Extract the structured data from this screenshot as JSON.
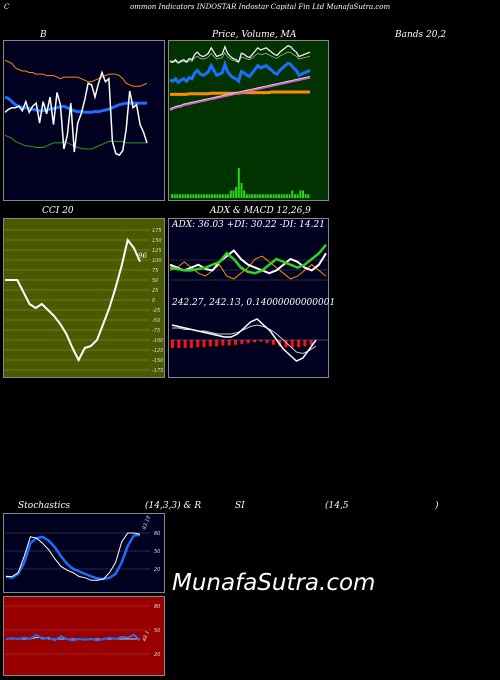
{
  "header": {
    "c": "C",
    "title": "ommon Indicators INDOSTAR Indostar Capital Fin Ltd MunafaSutra.com"
  },
  "labels": {
    "b": "B",
    "price": "Price, Volume, MA",
    "bands": "Bands 20,2",
    "cci": "CCI 20",
    "adx_macd": "ADX & MACD 12,26,9",
    "adx_values": "ADX: 36.03 +DI: 30.22 -DI: 14.21",
    "macd_values": "242.27, 242.13, 0.14000000000001",
    "stoch": "Stochastics",
    "stoch_params": "(14,3,3) & R",
    "rsi": "SI",
    "rsi_params": "(14,5",
    "rsi_close": ")",
    "cci_value": "96",
    "stoch_value": "83.18",
    "rsi_value": "48.1",
    "watermark": "MunafaSutra.com"
  },
  "colors": {
    "panel_navy": "#000020",
    "panel_green": "#003300",
    "cci_olive": "#4a5a00",
    "rsi_red": "#990000",
    "blue": "#1a6fff",
    "orange": "#ff8c00",
    "green_line": "#2fd41f",
    "magenta": "#d05ad0"
  },
  "chart_data": [
    {
      "type": "line",
      "name": "bollinger",
      "series": [
        {
          "values": [
            112,
            116,
            118,
            118,
            120,
            114,
            126,
            112,
            120,
            124,
            98,
            126,
            110,
            132,
            96,
            138,
            122,
            64,
            82,
            124,
            60,
            98,
            110,
            128,
            150,
            148,
            132,
            150,
            164,
            152,
            156,
            74,
            58,
            56,
            62,
            90,
            140,
            118,
            122,
            96,
            86,
            72
          ]
        },
        {
          "values": [
            132,
            130,
            126,
            122,
            120,
            118,
            118,
            117,
            116,
            115,
            114,
            114,
            115,
            116,
            117,
            118,
            119,
            120,
            118,
            116,
            114,
            113,
            113,
            112,
            112,
            112,
            113,
            113,
            114,
            115,
            116,
            118,
            120,
            122,
            123,
            124,
            124,
            124,
            124,
            124,
            124,
            124
          ]
        },
        {
          "values": [
            82,
            80,
            78,
            74,
            72,
            70,
            68,
            68,
            67,
            66,
            66,
            66,
            68,
            70,
            72,
            72,
            72,
            74,
            72,
            70,
            68,
            66,
            65,
            64,
            64,
            64,
            66,
            68,
            70,
            72,
            74,
            74,
            74,
            74,
            74,
            72,
            72,
            72,
            72,
            72,
            72,
            72
          ]
        },
        {
          "values": [
            180,
            178,
            176,
            170,
            168,
            166,
            166,
            164,
            164,
            162,
            162,
            162,
            160,
            160,
            160,
            158,
            156,
            158,
            158,
            158,
            158,
            158,
            156,
            154,
            152,
            152,
            154,
            156,
            158,
            160,
            162,
            162,
            162,
            160,
            156,
            150,
            148,
            146,
            146,
            146,
            148,
            150
          ]
        }
      ]
    },
    {
      "type": "line",
      "name": "price_volume_ma",
      "series": [
        {
          "values": [
            120,
            122,
            118,
            124,
            120,
            118,
            122,
            116,
            118,
            108,
            104,
            110,
            112,
            110,
            106,
            96,
            104,
            112,
            110,
            108,
            94,
            106,
            112,
            116,
            118,
            122,
            106,
            108,
            112,
            114,
            108,
            102,
            96,
            100,
            98,
            96,
            100,
            104,
            108,
            110,
            104,
            100,
            96,
            92,
            94,
            100,
            104,
            112,
            110,
            108,
            106,
            104
          ]
        },
        {
          "values": [
            50,
            52,
            54,
            55,
            56,
            58,
            59,
            60,
            61,
            62,
            63,
            64,
            65,
            66,
            67,
            68,
            69,
            70,
            71,
            72,
            73,
            74,
            75,
            76,
            77,
            78,
            79,
            80,
            81,
            82,
            83,
            84,
            85,
            86,
            87,
            88,
            89,
            90,
            91,
            92,
            93,
            94,
            95,
            96,
            97,
            98,
            99,
            100,
            101,
            102,
            103,
            104
          ]
        },
        {
          "values": [
            76,
            76,
            76,
            76,
            76,
            76,
            76,
            77,
            77,
            77,
            77,
            77,
            77,
            77,
            77,
            78,
            78,
            78,
            78,
            78,
            78,
            78,
            78,
            78,
            78,
            78,
            79,
            79,
            79,
            79,
            79,
            79,
            79,
            79,
            79,
            79,
            79,
            80,
            80,
            80,
            80,
            80,
            80,
            80,
            80,
            80,
            80,
            80,
            80,
            80,
            80,
            80
          ]
        }
      ],
      "volume": [
        1,
        1,
        1,
        1,
        1,
        1,
        1,
        1,
        1,
        1,
        1,
        1,
        1,
        1,
        1,
        1,
        1,
        1,
        1,
        1,
        1,
        1,
        2,
        2,
        3,
        8,
        4,
        2,
        1,
        1,
        1,
        1,
        1,
        1,
        1,
        1,
        1,
        1,
        1,
        1,
        1,
        1,
        1,
        1,
        1,
        2,
        1,
        1,
        2,
        2,
        1,
        1
      ]
    },
    {
      "type": "line",
      "name": "cci",
      "yticks": [
        175,
        150,
        125,
        100,
        75,
        50,
        25,
        0,
        -25,
        -50,
        -75,
        -100,
        -125,
        -150,
        -175
      ],
      "values": [
        50,
        50,
        50,
        20,
        -10,
        -20,
        -10,
        -25,
        -40,
        -60,
        -85,
        -120,
        -150,
        -120,
        -115,
        -100,
        -60,
        -20,
        30,
        85,
        150,
        130,
        96
      ]
    },
    {
      "type": "line",
      "name": "adx",
      "series": [
        {
          "name": "ADX",
          "values": [
            20,
            19,
            18,
            18,
            19,
            20,
            22,
            24,
            30,
            26,
            20,
            17,
            16,
            18,
            22,
            26,
            24,
            22,
            20,
            22,
            26,
            30,
            36
          ]
        },
        {
          "name": "+DI",
          "values": [
            22,
            20,
            18,
            20,
            22,
            19,
            18,
            24,
            28,
            32,
            26,
            22,
            20,
            18,
            16,
            18,
            22,
            26,
            24,
            20,
            18,
            22,
            30
          ]
        },
        {
          "name": "-DI",
          "values": [
            18,
            20,
            24,
            20,
            16,
            14,
            18,
            22,
            14,
            12,
            16,
            20,
            26,
            28,
            24,
            20,
            16,
            12,
            14,
            18,
            22,
            18,
            14
          ]
        }
      ]
    },
    {
      "type": "line",
      "name": "macd",
      "series": [
        {
          "values": [
            30,
            29,
            28,
            27,
            26,
            25,
            24,
            23,
            22,
            22,
            24,
            28,
            32,
            34,
            30,
            26,
            20,
            14,
            10,
            6,
            8,
            14,
            20
          ]
        },
        {
          "values": [
            28,
            28,
            27,
            27,
            26,
            26,
            25,
            24,
            24,
            24,
            25,
            27,
            29,
            30,
            29,
            27,
            24,
            20,
            16,
            12,
            11,
            13,
            16
          ]
        }
      ],
      "histogram": [
        -10,
        -10,
        -10,
        -10,
        -9,
        -9,
        -8,
        -8,
        -7,
        -7,
        -6,
        -5,
        -4,
        -3,
        -2,
        -4,
        -6,
        -8,
        -9,
        -10,
        -9,
        -8,
        -6
      ]
    },
    {
      "type": "line",
      "name": "stochastic",
      "yticks": [
        80,
        50,
        20
      ],
      "series": [
        {
          "values": [
            18,
            16,
            22,
            40,
            70,
            78,
            80,
            74,
            64,
            50,
            38,
            30,
            26,
            22,
            18,
            15,
            14,
            16,
            22,
            40,
            66,
            82,
            83
          ]
        },
        {
          "values": [
            18,
            18,
            24,
            50,
            80,
            78,
            70,
            60,
            46,
            34,
            28,
            24,
            18,
            16,
            12,
            12,
            14,
            24,
            40,
            72,
            86,
            86,
            84
          ]
        }
      ]
    },
    {
      "type": "line",
      "name": "rsi",
      "yticks": [
        80,
        50,
        20
      ],
      "series": [
        {
          "values": [
            50,
            50,
            50,
            50,
            50,
            52,
            52,
            50,
            50,
            50,
            50,
            50,
            50,
            50,
            50,
            50,
            50,
            50,
            50,
            50,
            50,
            50,
            50
          ]
        },
        {
          "values": [
            50,
            51,
            50,
            52,
            50,
            56,
            50,
            52,
            48,
            54,
            50,
            48,
            50,
            49,
            50,
            48,
            50,
            52,
            50,
            53,
            52,
            56,
            48
          ]
        }
      ]
    }
  ]
}
